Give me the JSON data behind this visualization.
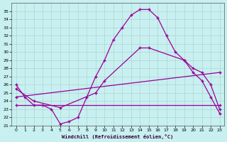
{
  "xlabel": "Windchill (Refroidissement éolien,°C)",
  "background_color": "#c8f0f0",
  "line_color": "#990099",
  "xlim": [
    -0.5,
    23.5
  ],
  "ylim": [
    21,
    36
  ],
  "xticks": [
    0,
    1,
    2,
    3,
    4,
    5,
    6,
    7,
    8,
    9,
    10,
    11,
    12,
    13,
    14,
    15,
    16,
    17,
    18,
    19,
    20,
    21,
    22,
    23
  ],
  "yticks": [
    21,
    22,
    23,
    24,
    25,
    26,
    27,
    28,
    29,
    30,
    31,
    32,
    33,
    34,
    35
  ],
  "line1_x": [
    0,
    1,
    2,
    3,
    4,
    5,
    6,
    7,
    8,
    9,
    10,
    11,
    12,
    13,
    14,
    15,
    16,
    17,
    18,
    19,
    20,
    21,
    22,
    23
  ],
  "line1_y": [
    26.0,
    24.5,
    23.5,
    23.5,
    23.0,
    21.2,
    21.5,
    22.0,
    24.5,
    27.0,
    29.0,
    31.5,
    33.0,
    34.5,
    35.2,
    35.2,
    34.2,
    32.0,
    30.0,
    29.0,
    27.5,
    26.5,
    24.5,
    22.5
  ],
  "line2_x": [
    0,
    2,
    5,
    9,
    10,
    14,
    15,
    19,
    20,
    21,
    22,
    23
  ],
  "line2_y": [
    25.5,
    24.0,
    23.2,
    25.0,
    26.5,
    30.5,
    30.5,
    29.0,
    28.0,
    27.5,
    26.0,
    23.0
  ],
  "line3_x": [
    0,
    23
  ],
  "line3_y": [
    24.5,
    27.5
  ],
  "line4_x": [
    0,
    23
  ],
  "line4_y": [
    23.5,
    23.5
  ]
}
